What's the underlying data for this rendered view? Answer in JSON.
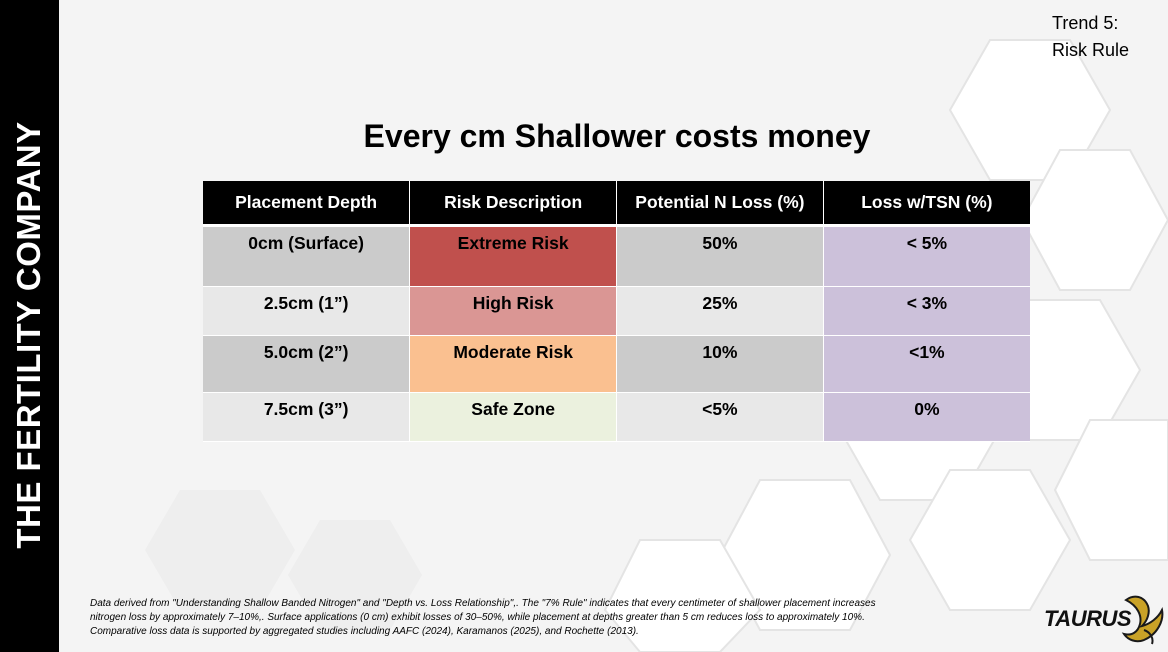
{
  "sidebar": {
    "company_name": "THE FERTILITY COMPANY"
  },
  "trend": {
    "line1": "Trend 5:",
    "line2": "Risk Rule"
  },
  "title": "Every cm Shallower costs money",
  "table": {
    "headers": [
      "Placement Depth",
      "Risk Description",
      "Potential N Loss (%)",
      "Loss w/TSN (%)"
    ],
    "rows": [
      {
        "depth": "0cm (Surface)",
        "risk": "Extreme Risk",
        "loss": "50%",
        "tsn": "< 5%",
        "risk_color": "#c0504d"
      },
      {
        "depth": "2.5cm (1”)",
        "risk": "High Risk",
        "loss": "25%",
        "tsn": "< 3%",
        "risk_color": "#da9694"
      },
      {
        "depth": "5.0cm (2”)",
        "risk": "Moderate Risk",
        "loss": "10%",
        "tsn": "<1%",
        "risk_color": "#fac090"
      },
      {
        "depth": "7.5cm (3”)",
        "risk": "Safe Zone",
        "loss": "<5%",
        "tsn": "0%",
        "risk_color": "#ebf1de"
      }
    ],
    "colors": {
      "header_bg": "#000000",
      "row_dark": "#cbcbcb",
      "row_light": "#e8e8e8",
      "tsn_col": "#ccc1da"
    }
  },
  "footnote": {
    "line1": "Data derived from \"Understanding Shallow Banded Nitrogen\" and \"Depth vs. Loss Relationship\",. The \"7% Rule\" indicates that every centimeter of shallower placement increases",
    "line2": "nitrogen loss by approximately 7–10%,. Surface applications (0 cm) exhibit losses of 30–50%, while placement at depths greater than 5 cm reduces loss to approximately 10%.",
    "line3": "Comparative loss data is supported by aggregated studies including AAFC (2024), Karamanos (2025), and Rochette (2013)."
  },
  "logo": {
    "text": "TAURUS",
    "icon": "bull-horn-icon"
  }
}
